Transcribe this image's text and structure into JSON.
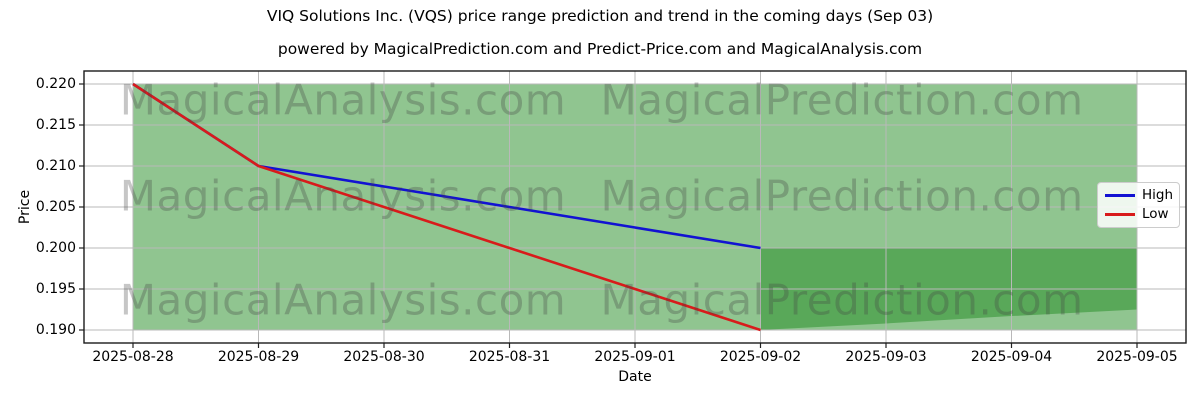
{
  "chart_data": {
    "type": "line",
    "title": "VIQ Solutions Inc. (VQS) price range prediction and trend in the coming days (Sep 03)",
    "subtitle": "powered by MagicalPrediction.com and Predict-Price.com and MagicalAnalysis.com",
    "xlabel": "Date",
    "ylabel": "Price",
    "dates": [
      "2025-08-28",
      "2025-08-29",
      "2025-08-30",
      "2025-08-31",
      "2025-09-01",
      "2025-09-02",
      "2025-09-03",
      "2025-09-04",
      "2025-09-05"
    ],
    "yticks": [
      0.19,
      0.195,
      0.2,
      0.205,
      0.21,
      0.215,
      0.22
    ],
    "ylim": [
      0.1885,
      0.2215
    ],
    "grid": true,
    "grid_color": "#b9b9b9",
    "series": [
      {
        "name": "High",
        "color": "#1212d2",
        "values": [
          0.22,
          0.21,
          0.2075,
          0.205,
          0.2025,
          0.2,
          null,
          null,
          null
        ]
      },
      {
        "name": "Low",
        "color": "#d81b1b",
        "values": [
          0.22,
          0.21,
          0.205,
          0.2,
          0.195,
          0.19,
          null,
          null,
          null
        ]
      }
    ],
    "range_band": {
      "high": 0.22,
      "low": 0.19,
      "color": "#228b22",
      "alpha": 0.5
    },
    "prediction_band": {
      "dates": [
        "2025-09-02",
        "2025-09-03",
        "2025-09-04",
        "2025-09-05"
      ],
      "high": [
        0.2,
        0.2,
        0.2,
        0.2
      ],
      "low": [
        0.19,
        0.1908,
        0.1917,
        0.1925
      ],
      "color": "#228b22",
      "alpha": 0.5
    },
    "watermarks": [
      "MagicalAnalysis.com",
      "MagicalPrediction.com"
    ],
    "legend": {
      "position": "center-right",
      "entries": [
        "High",
        "Low"
      ]
    }
  }
}
